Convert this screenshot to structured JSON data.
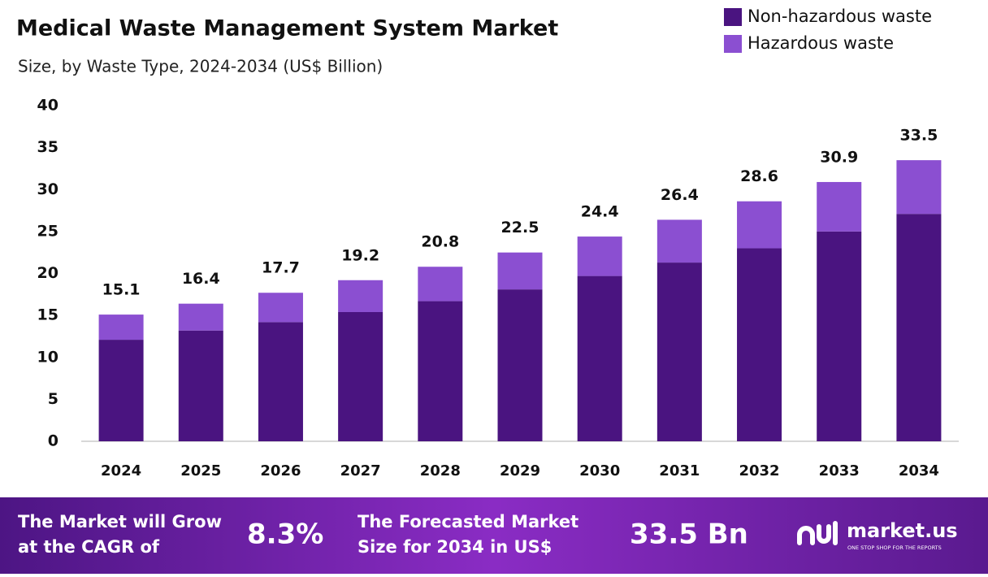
{
  "chart_data": {
    "type": "stacked-bar",
    "title": "Medical Waste Management System Market",
    "subtitle": "Size, by Waste Type, 2024-2034 (US$ Billion)",
    "categories": [
      "2024",
      "2025",
      "2026",
      "2027",
      "2028",
      "2029",
      "2030",
      "2031",
      "2032",
      "2033",
      "2034"
    ],
    "series": [
      {
        "name": "Non-hazardous waste",
        "color": "#4a1480",
        "values": [
          12.1,
          13.2,
          14.2,
          15.4,
          16.7,
          18.1,
          19.7,
          21.3,
          23.0,
          25.0,
          27.1
        ]
      },
      {
        "name": "Hazardous waste",
        "color": "#8b4fd1",
        "values": [
          3.0,
          3.2,
          3.5,
          3.8,
          4.1,
          4.4,
          4.7,
          5.1,
          5.6,
          5.9,
          6.4
        ]
      }
    ],
    "totals": [
      15.1,
      16.4,
      17.7,
      19.2,
      20.8,
      22.5,
      24.4,
      26.4,
      28.6,
      30.9,
      33.5
    ],
    "ylim": [
      0,
      40
    ],
    "yticks": [
      0,
      5,
      10,
      15,
      20,
      25,
      30,
      35,
      40
    ],
    "legend": "top-right"
  },
  "footer": {
    "cagr_text": [
      "The Market will Grow",
      "at the CAGR of"
    ],
    "cagr_value": "8.3%",
    "forecast_text": [
      "The Forecasted Market",
      "Size for 2034 in US$"
    ],
    "forecast_value": "33.5 Bn",
    "brand": "market.us",
    "tagline": "ONE STOP SHOP FOR THE REPORTS"
  }
}
